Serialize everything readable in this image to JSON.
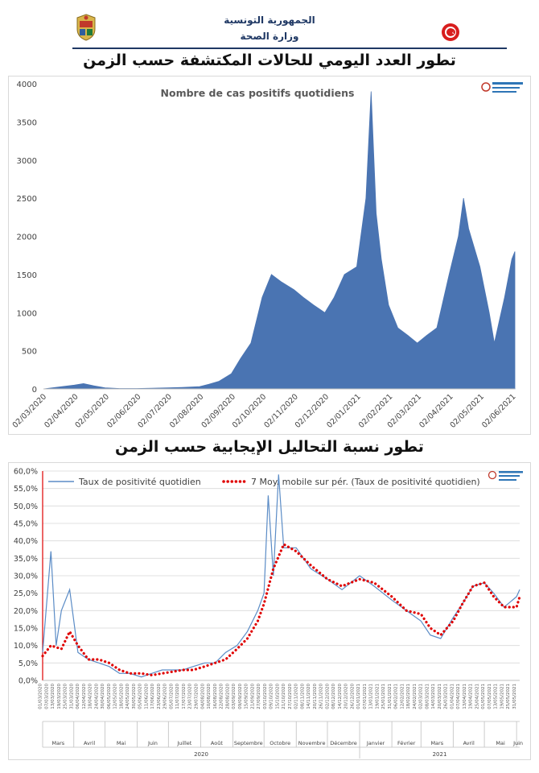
{
  "header": {
    "republic": "الجمهورية التونسية",
    "ministry": "وزارة الصحة"
  },
  "chart1_heading": "تطور العدد اليومي للحالات المكتشفة حسب الزمن",
  "chart2_heading": "تطور نسبة التحاليل الإيجابية حسب الزمن",
  "colors": {
    "area_fill": "#4a74b2",
    "line": "#5b8cc6",
    "moving_avg": "#e00000",
    "header_text": "#1f3864"
  },
  "chart_data": [
    {
      "type": "area",
      "title": "Nombre de cas positifs quotidiens",
      "xlabel": "",
      "ylabel": "",
      "ylim": [
        0,
        4000
      ],
      "yticks": [
        "0",
        "500",
        "1000",
        "1500",
        "2000",
        "2500",
        "3000",
        "3500",
        "4000"
      ],
      "xtick_labels": [
        "02/03/2020",
        "02/04/2020",
        "02/05/2020",
        "02/06/2020",
        "02/07/2020",
        "02/08/2020",
        "02/09/2020",
        "02/10/2020",
        "02/11/2020",
        "02/12/2020",
        "02/01/2021",
        "02/02/2021",
        "02/03/2021",
        "02/04/2021",
        "02/05/2021",
        "02/06/2021"
      ],
      "grid": false,
      "series": [
        {
          "x": [
            "2020-03-02",
            "2020-03-20",
            "2020-04-01",
            "2020-04-10",
            "2020-04-20",
            "2020-05-01",
            "2020-05-15",
            "2020-06-01",
            "2020-06-15",
            "2020-07-01",
            "2020-07-15",
            "2020-08-01",
            "2020-08-10",
            "2020-08-20",
            "2020-09-01",
            "2020-09-10",
            "2020-09-20",
            "2020-10-01",
            "2020-10-10",
            "2020-10-20",
            "2020-11-01",
            "2020-11-10",
            "2020-11-20",
            "2020-12-01",
            "2020-12-10",
            "2020-12-20",
            "2021-01-01",
            "2021-01-10",
            "2021-01-15",
            "2021-01-20",
            "2021-01-25",
            "2021-02-01",
            "2021-02-10",
            "2021-02-20",
            "2021-03-01",
            "2021-03-10",
            "2021-03-20",
            "2021-04-01",
            "2021-04-10",
            "2021-04-15",
            "2021-04-20",
            "2021-05-01",
            "2021-05-10",
            "2021-05-15",
            "2021-05-20",
            "2021-05-25",
            "2021-06-01",
            "2021-06-04"
          ],
          "values": [
            0,
            30,
            50,
            70,
            40,
            15,
            5,
            5,
            10,
            15,
            20,
            30,
            60,
            100,
            200,
            400,
            600,
            1200,
            1500,
            1400,
            1300,
            1200,
            1100,
            1000,
            1200,
            1500,
            1600,
            2500,
            3900,
            2300,
            1700,
            1100,
            800,
            700,
            600,
            700,
            800,
            1500,
            2000,
            2500,
            2100,
            1600,
            1000,
            600,
            900,
            1200,
            1700,
            1800
          ]
        }
      ]
    },
    {
      "type": "line",
      "title": "",
      "xlabel": "",
      "ylabel": "",
      "ylim": [
        0,
        60
      ],
      "yticks": [
        "0,0%",
        "5,0%",
        "10,0%",
        "15,0%",
        "20,0%",
        "25,0%",
        "30,0%",
        "35,0%",
        "40,0%",
        "45,0%",
        "50,0%",
        "55,0%",
        "60,0%"
      ],
      "month_labels": [
        "Mars",
        "Avril",
        "Mai",
        "Juin",
        "Juillet",
        "Août",
        "Septembre",
        "Octobre",
        "Novembre",
        "Décembre",
        "Janvier",
        "Février",
        "Mars",
        "Avril",
        "Mai",
        "Juin"
      ],
      "year_labels": [
        "2020",
        "2021"
      ],
      "legend": "top",
      "grid": true,
      "series": [
        {
          "name": "Taux de positivité quotidien",
          "x": [
            "2020-03-02",
            "2020-03-10",
            "2020-03-15",
            "2020-03-20",
            "2020-03-28",
            "2020-04-05",
            "2020-04-15",
            "2020-04-25",
            "2020-05-05",
            "2020-05-15",
            "2020-05-25",
            "2020-06-05",
            "2020-06-15",
            "2020-06-25",
            "2020-07-05",
            "2020-07-15",
            "2020-07-25",
            "2020-08-05",
            "2020-08-15",
            "2020-08-25",
            "2020-09-05",
            "2020-09-15",
            "2020-09-25",
            "2020-10-01",
            "2020-10-05",
            "2020-10-10",
            "2020-10-15",
            "2020-10-20",
            "2020-11-01",
            "2020-11-15",
            "2020-12-01",
            "2020-12-15",
            "2021-01-01",
            "2021-01-15",
            "2021-02-01",
            "2021-02-15",
            "2021-03-01",
            "2021-03-10",
            "2021-03-20",
            "2021-04-01",
            "2021-04-10",
            "2021-04-20",
            "2021-05-01",
            "2021-05-10",
            "2021-05-20",
            "2021-06-01",
            "2021-06-04"
          ],
          "values": [
            8,
            37,
            10,
            20,
            26,
            8,
            6,
            5,
            4,
            2,
            2,
            1,
            2,
            3,
            3,
            3,
            4,
            5,
            5,
            8,
            10,
            14,
            20,
            25,
            53,
            30,
            59,
            38,
            38,
            32,
            29,
            26,
            30,
            27,
            23,
            20,
            17,
            13,
            12,
            18,
            22,
            27,
            28,
            25,
            21,
            24,
            26
          ]
        },
        {
          "name": "7 Moy. mobile sur pér. (Taux de positivité quotidien)",
          "x": [
            "2020-03-02",
            "2020-03-10",
            "2020-03-20",
            "2020-03-28",
            "2020-04-05",
            "2020-04-15",
            "2020-04-25",
            "2020-05-05",
            "2020-05-15",
            "2020-05-25",
            "2020-06-05",
            "2020-06-15",
            "2020-06-25",
            "2020-07-05",
            "2020-07-15",
            "2020-07-25",
            "2020-08-05",
            "2020-08-15",
            "2020-08-25",
            "2020-09-05",
            "2020-09-15",
            "2020-09-25",
            "2020-10-01",
            "2020-10-10",
            "2020-10-20",
            "2020-11-01",
            "2020-11-15",
            "2020-12-01",
            "2020-12-15",
            "2021-01-01",
            "2021-01-15",
            "2021-02-01",
            "2021-02-15",
            "2021-03-01",
            "2021-03-10",
            "2021-03-20",
            "2021-04-01",
            "2021-04-10",
            "2021-04-20",
            "2021-05-01",
            "2021-05-10",
            "2021-05-20",
            "2021-06-01",
            "2021-06-04"
          ],
          "values": [
            7,
            10,
            9,
            14,
            10,
            6,
            6,
            5,
            3,
            2,
            2,
            1.5,
            2,
            2.5,
            3,
            3,
            4,
            5,
            6,
            9,
            12,
            17,
            22,
            32,
            39,
            37,
            33,
            29,
            27,
            29,
            28,
            24,
            20,
            19,
            15,
            13,
            17,
            22,
            27,
            28,
            24,
            21,
            21,
            24
          ]
        }
      ]
    }
  ]
}
